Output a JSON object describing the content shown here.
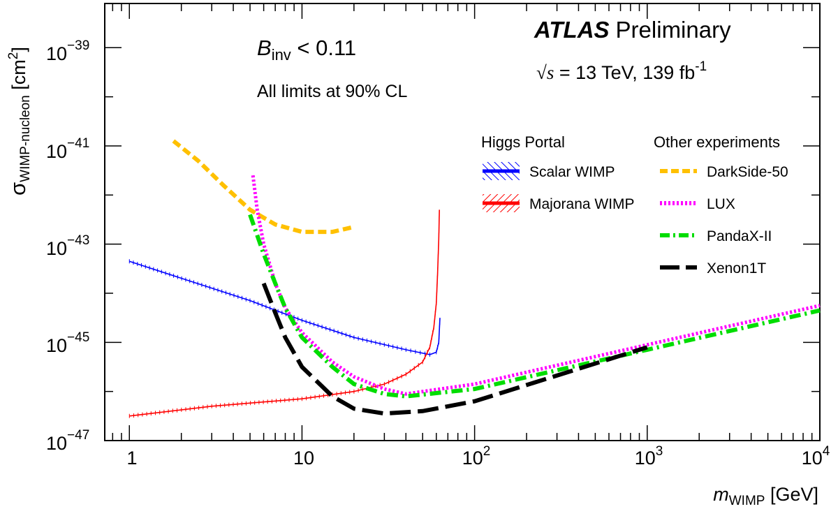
{
  "chart_data": {
    "type": "line",
    "x_scale": "log",
    "y_scale": "log",
    "xlim": [
      0.72,
      10000
    ],
    "ylim_exponent": [
      -47,
      -38.1
    ],
    "x_tick_labels": [
      {
        "base": "1",
        "exp": ""
      },
      {
        "base": "10",
        "exp": ""
      },
      {
        "base": "10",
        "exp": "2"
      },
      {
        "base": "10",
        "exp": "3"
      },
      {
        "base": "10",
        "exp": "4"
      }
    ],
    "y_tick_labels": [
      {
        "base": "10",
        "exp": "−39"
      },
      {
        "base": "10",
        "exp": "−41"
      },
      {
        "base": "10",
        "exp": "−43"
      },
      {
        "base": "10",
        "exp": "−45"
      },
      {
        "base": "10",
        "exp": "−47"
      }
    ],
    "xlabel": {
      "symbol": "m",
      "sub": "WIMP",
      "unit": " [GeV]"
    },
    "ylabel": {
      "symbol": "σ",
      "sub": "WIMP-nucleon",
      "unit": " [cm",
      "sup": "2",
      "close": "]"
    },
    "annotations": {
      "atlas": "ATLAS",
      "preliminary": "Preliminary",
      "energy_sqrt": "√s",
      "energy_text": " = 13 TeV, 139 fb",
      "energy_sup": "-1",
      "binv_symbol": "B",
      "binv_sub": "inv",
      "binv_text": " < 0.11",
      "cl_text": "All limits at 90% CL"
    },
    "legend": {
      "placement": "top-right",
      "group_higgs": "Higgs Portal",
      "group_other": "Other experiments"
    },
    "series": [
      {
        "name": "Scalar WIMP",
        "color": "#0000ff",
        "style": "solid-hatched",
        "points": [
          [
            1,
            -43.35
          ],
          [
            5,
            -44.15
          ],
          [
            10,
            -44.55
          ],
          [
            20,
            -44.9
          ],
          [
            40,
            -45.15
          ],
          [
            55,
            -45.25
          ],
          [
            60,
            -45.2
          ],
          [
            62,
            -45.0
          ],
          [
            63,
            -44.5
          ]
        ]
      },
      {
        "name": "Majorana WIMP",
        "color": "#ff0000",
        "style": "solid-hatched",
        "points": [
          [
            1,
            -46.5
          ],
          [
            3,
            -46.3
          ],
          [
            10,
            -46.15
          ],
          [
            20,
            -46.0
          ],
          [
            30,
            -45.85
          ],
          [
            40,
            -45.65
          ],
          [
            50,
            -45.4
          ],
          [
            55,
            -45.1
          ],
          [
            58,
            -44.7
          ],
          [
            60,
            -44.2
          ],
          [
            61,
            -43.6
          ],
          [
            62,
            -42.9
          ],
          [
            62.5,
            -42.3
          ]
        ]
      },
      {
        "name": "DarkSide-50",
        "color": "#ffc000",
        "style": "dashed-thick",
        "points": [
          [
            1.8,
            -40.9
          ],
          [
            2.5,
            -41.3
          ],
          [
            3.5,
            -41.8
          ],
          [
            5,
            -42.3
          ],
          [
            7,
            -42.6
          ],
          [
            10,
            -42.75
          ],
          [
            15,
            -42.75
          ],
          [
            20,
            -42.65
          ]
        ]
      },
      {
        "name": "LUX",
        "color": "#ff00ff",
        "style": "dotted-thick",
        "points": [
          [
            5.2,
            -41.6
          ],
          [
            5.5,
            -42.3
          ],
          [
            6,
            -43
          ],
          [
            7,
            -43.8
          ],
          [
            8,
            -44.3
          ],
          [
            10,
            -44.8
          ],
          [
            15,
            -45.4
          ],
          [
            20,
            -45.7
          ],
          [
            30,
            -45.95
          ],
          [
            40,
            -46.05
          ],
          [
            100,
            -45.85
          ],
          [
            1000,
            -45.05
          ],
          [
            10000,
            -44.25
          ]
        ]
      },
      {
        "name": "PandaX-II",
        "color": "#00dd00",
        "style": "dashdot-thick",
        "points": [
          [
            5,
            -42.4
          ],
          [
            6,
            -43.2
          ],
          [
            7,
            -43.8
          ],
          [
            8,
            -44.3
          ],
          [
            10,
            -44.9
          ],
          [
            15,
            -45.5
          ],
          [
            20,
            -45.85
          ],
          [
            30,
            -46.05
          ],
          [
            40,
            -46.1
          ],
          [
            100,
            -45.95
          ],
          [
            1000,
            -45.15
          ],
          [
            10000,
            -44.35
          ]
        ]
      },
      {
        "name": "Xenon1T",
        "color": "#000000",
        "style": "longdash-thick",
        "points": [
          [
            6,
            -43.8
          ],
          [
            7,
            -44.4
          ],
          [
            8,
            -44.9
          ],
          [
            10,
            -45.5
          ],
          [
            15,
            -46.1
          ],
          [
            20,
            -46.35
          ],
          [
            30,
            -46.45
          ],
          [
            50,
            -46.4
          ],
          [
            100,
            -46.2
          ],
          [
            1000,
            -45.1
          ]
        ]
      }
    ]
  }
}
